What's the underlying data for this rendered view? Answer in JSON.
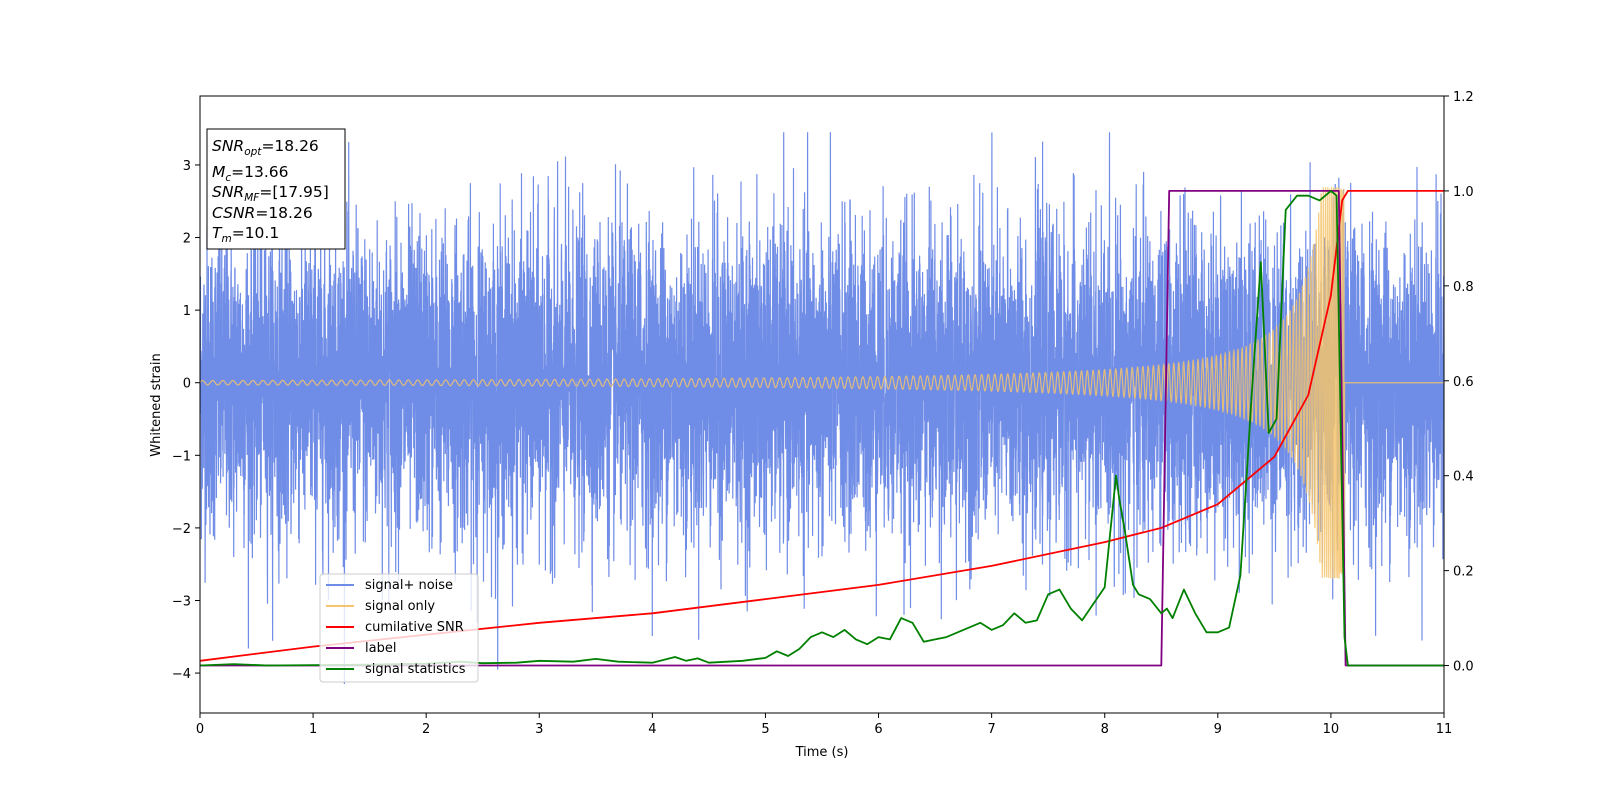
{
  "chart_data": {
    "type": "line",
    "xlabel": "Time (s)",
    "ylabel": "Whitened strain",
    "xlim": [
      0,
      11
    ],
    "ylim": [
      -4.55,
      3.95
    ],
    "y2lim": [
      -0.1,
      1.2
    ],
    "xticks": [
      0,
      1,
      2,
      3,
      4,
      5,
      6,
      7,
      8,
      9,
      10,
      11
    ],
    "yticks": [
      -4,
      -3,
      -2,
      -1,
      0,
      1,
      2,
      3
    ],
    "yticks_labels": [
      "−4",
      "−3",
      "−2",
      "−1",
      "0",
      "1",
      "2",
      "3"
    ],
    "y2ticks": [
      "0.0",
      "0.2",
      "0.4",
      "0.6",
      "0.8",
      "1.0",
      "1.2"
    ],
    "grid": false,
    "legend_position": "lower-left",
    "annotation": {
      "snr_opt": {
        "sym": "SNR",
        "sub": "opt",
        "value": "=18.26"
      },
      "mc": {
        "sym": "M",
        "sub": "c",
        "value": "=13.66"
      },
      "snr_mf": {
        "sym": "SNR",
        "sub": "MF",
        "value": "=[17.95]"
      },
      "csnr": {
        "sym": "CSNR",
        "value": "=18.26"
      },
      "tm": {
        "sym": "T",
        "sub": "m",
        "value": "=10.1"
      }
    },
    "series": [
      {
        "name": "signal+ noise",
        "color": "#6f8ce6",
        "axis": "left",
        "description": "Gaussian-like noise, amplitude approx ±3.4, spanning t=0 to 11"
      },
      {
        "name": "signal only",
        "color": "#f5c46c",
        "axis": "left",
        "chirp": {
          "start": 0,
          "merger": 10.1,
          "end": 11,
          "amp_start": 0.03,
          "amp_peak": 2.7
        }
      },
      {
        "name": "cumilative SNR",
        "color": "#ff0000",
        "axis": "right",
        "x": [
          0,
          1,
          2,
          3,
          4,
          5,
          6,
          7,
          8,
          8.5,
          9,
          9.5,
          9.8,
          10.0,
          10.1,
          10.15,
          11
        ],
        "y": [
          0.01,
          0.04,
          0.065,
          0.09,
          0.11,
          0.14,
          0.17,
          0.21,
          0.26,
          0.29,
          0.34,
          0.44,
          0.57,
          0.78,
          0.98,
          1.0,
          1.0
        ]
      },
      {
        "name": "label",
        "color": "#800080",
        "axis": "right",
        "x": [
          0,
          8.5,
          8.57,
          10.07,
          10.13,
          11
        ],
        "y": [
          0,
          0,
          1,
          1,
          0,
          0
        ]
      },
      {
        "name": "signal statistics",
        "color": "#008000",
        "axis": "right",
        "x": [
          0,
          0.3,
          0.6,
          1.0,
          1.5,
          2.0,
          2.3,
          2.5,
          2.8,
          3.0,
          3.3,
          3.5,
          3.7,
          4.0,
          4.2,
          4.3,
          4.4,
          4.5,
          4.8,
          5.0,
          5.1,
          5.2,
          5.3,
          5.4,
          5.5,
          5.6,
          5.7,
          5.8,
          5.9,
          6.0,
          6.1,
          6.2,
          6.3,
          6.4,
          6.5,
          6.6,
          6.7,
          6.8,
          6.9,
          7.0,
          7.1,
          7.2,
          7.3,
          7.4,
          7.5,
          7.6,
          7.7,
          7.8,
          7.9,
          8.0,
          8.1,
          8.13,
          8.18,
          8.25,
          8.3,
          8.4,
          8.5,
          8.55,
          8.6,
          8.7,
          8.8,
          8.9,
          9.0,
          9.1,
          9.2,
          9.3,
          9.38,
          9.45,
          9.52,
          9.6,
          9.7,
          9.8,
          9.9,
          10.0,
          10.05,
          10.12,
          10.15,
          10.2,
          11
        ],
        "y": [
          0.0,
          0.003,
          0.0,
          0.001,
          0.002,
          0.004,
          0.008,
          0.005,
          0.006,
          0.01,
          0.008,
          0.014,
          0.008,
          0.006,
          0.018,
          0.01,
          0.015,
          0.006,
          0.01,
          0.016,
          0.03,
          0.02,
          0.035,
          0.06,
          0.07,
          0.06,
          0.075,
          0.055,
          0.045,
          0.06,
          0.055,
          0.1,
          0.09,
          0.05,
          0.055,
          0.06,
          0.07,
          0.08,
          0.09,
          0.075,
          0.085,
          0.11,
          0.09,
          0.095,
          0.15,
          0.16,
          0.12,
          0.095,
          0.13,
          0.165,
          0.4,
          0.35,
          0.28,
          0.17,
          0.15,
          0.14,
          0.11,
          0.12,
          0.1,
          0.16,
          0.11,
          0.07,
          0.07,
          0.08,
          0.19,
          0.57,
          0.85,
          0.49,
          0.52,
          0.96,
          0.99,
          0.99,
          0.98,
          1.0,
          0.99,
          0.06,
          0.0,
          0.0,
          0.0
        ]
      }
    ]
  }
}
